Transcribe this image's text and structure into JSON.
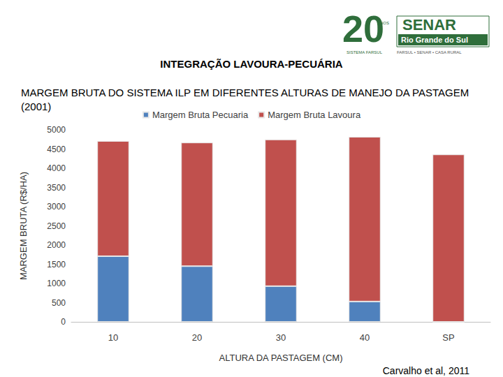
{
  "slide": {
    "title": "INTEGRAÇÃO LAVOURA-PECUÁRIA",
    "source": "Carvalho et al, 2011",
    "logo": {
      "number": "20",
      "years": "ANOS",
      "name": "SENAR",
      "region": "Rio Grande do Sul",
      "system": "SISTEMA FARSUL",
      "members": "FARSUL • SENAR • CASA RURAL"
    }
  },
  "chart_data": {
    "type": "bar",
    "stacked": true,
    "title": "MARGEM BRUTA DO SISTEMA ILP EM DIFERENTES ALTURAS DE MANEJO DA PASTAGEM (2001)",
    "x_label": "ALTURA DA PASTAGEM (CM)",
    "y_label": "MARGEM BRUTA (R$/HA)",
    "categories": [
      "10",
      "20",
      "30",
      "40",
      "SP"
    ],
    "series": [
      {
        "name": "Margem Bruta Pecuaria",
        "color": "#4f81bd",
        "values": [
          1710,
          1450,
          930,
          530,
          0
        ]
      },
      {
        "name": "Margem Bruta Lavoura",
        "color": "#c0504d",
        "values": [
          3000,
          3220,
          3820,
          4290,
          4360
        ]
      }
    ],
    "ylim": [
      0,
      5000
    ],
    "yticks": [
      0,
      500,
      1000,
      1500,
      2000,
      2500,
      3000,
      3500,
      4000,
      4500,
      5000
    ],
    "grid": false,
    "legend": "top"
  }
}
